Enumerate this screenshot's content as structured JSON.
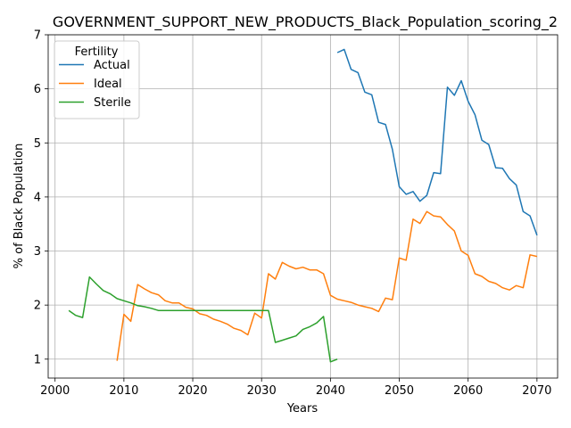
{
  "chart_data": {
    "type": "line",
    "title": "GOVERNMENT_SUPPORT_NEW_PRODUCTS_Black_Population_scoring_2",
    "xlabel": "Years",
    "ylabel": "% of Black Population",
    "xlim": [
      1999,
      2073
    ],
    "ylim": [
      0.65,
      7.0
    ],
    "xticks": [
      2000,
      2010,
      2020,
      2030,
      2040,
      2050,
      2060,
      2070
    ],
    "yticks": [
      1,
      2,
      3,
      4,
      5,
      6,
      7
    ],
    "grid": true,
    "legend": {
      "title": "Fertility",
      "position": "top-left"
    },
    "series": [
      {
        "name": "Actual",
        "color": "#1f77b4",
        "x": [
          2041,
          2042,
          2043,
          2044,
          2045,
          2046,
          2047,
          2048,
          2049,
          2050,
          2051,
          2052,
          2053,
          2054,
          2055,
          2056,
          2057,
          2058,
          2059,
          2060,
          2061,
          2062,
          2063,
          2064,
          2065,
          2066,
          2067,
          2068,
          2069,
          2070
        ],
        "y": [
          6.67,
          6.73,
          6.36,
          6.3,
          5.94,
          5.89,
          5.38,
          5.34,
          4.88,
          4.19,
          4.05,
          4.1,
          3.92,
          4.03,
          4.45,
          4.43,
          6.03,
          5.88,
          6.15,
          5.77,
          5.52,
          5.05,
          4.97,
          4.54,
          4.53,
          4.34,
          4.22,
          3.73,
          3.65,
          3.29
        ]
      },
      {
        "name": "Ideal",
        "color": "#ff7f0e",
        "x": [
          2009,
          2010,
          2011,
          2012,
          2013,
          2014,
          2015,
          2016,
          2017,
          2018,
          2019,
          2020,
          2021,
          2022,
          2023,
          2024,
          2025,
          2026,
          2027,
          2028,
          2029,
          2030,
          2031,
          2032,
          2033,
          2034,
          2035,
          2036,
          2037,
          2038,
          2039,
          2040,
          2041,
          2042,
          2043,
          2044,
          2045,
          2046,
          2047,
          2048,
          2049,
          2050,
          2051,
          2052,
          2053,
          2054,
          2055,
          2056,
          2057,
          2058,
          2059,
          2060,
          2061,
          2062,
          2063,
          2064,
          2065,
          2066,
          2067,
          2068,
          2069,
          2070
        ],
        "y": [
          0.97,
          1.83,
          1.7,
          2.38,
          2.3,
          2.23,
          2.19,
          2.08,
          2.04,
          2.04,
          1.96,
          1.93,
          1.84,
          1.81,
          1.74,
          1.7,
          1.65,
          1.57,
          1.53,
          1.45,
          1.85,
          1.76,
          2.58,
          2.48,
          2.79,
          2.72,
          2.67,
          2.7,
          2.65,
          2.65,
          2.58,
          2.18,
          2.11,
          2.08,
          2.05,
          2.0,
          1.97,
          1.94,
          1.88,
          2.13,
          2.1,
          2.87,
          2.83,
          3.59,
          3.51,
          3.73,
          3.65,
          3.63,
          3.49,
          3.37,
          3.0,
          2.92,
          2.58,
          2.53,
          2.44,
          2.4,
          2.32,
          2.28,
          2.36,
          2.32,
          2.93,
          2.9
        ]
      },
      {
        "name": "Sterile",
        "color": "#2ca02c",
        "x": [
          2002,
          2003,
          2004,
          2005,
          2006,
          2007,
          2008,
          2009,
          2010,
          2011,
          2012,
          2013,
          2014,
          2015,
          2016,
          2017,
          2018,
          2019,
          2020,
          2021,
          2022,
          2023,
          2024,
          2025,
          2026,
          2027,
          2028,
          2029,
          2030,
          2031,
          2032,
          2033,
          2034,
          2035,
          2036,
          2037,
          2038,
          2039,
          2040,
          2041
        ],
        "y": [
          1.9,
          1.81,
          1.77,
          2.52,
          2.39,
          2.27,
          2.21,
          2.12,
          2.08,
          2.04,
          1.99,
          1.97,
          1.94,
          1.9,
          1.9,
          1.9,
          1.9,
          1.9,
          1.9,
          1.9,
          1.9,
          1.9,
          1.9,
          1.9,
          1.9,
          1.9,
          1.9,
          1.9,
          1.9,
          1.9,
          1.31,
          1.35,
          1.39,
          1.43,
          1.55,
          1.6,
          1.67,
          1.79,
          0.95,
          1.0
        ]
      }
    ]
  }
}
